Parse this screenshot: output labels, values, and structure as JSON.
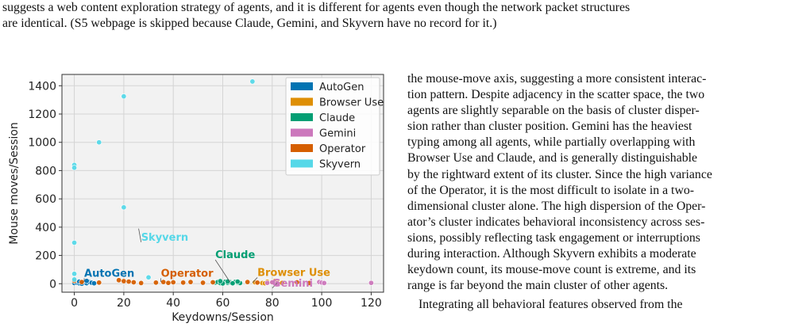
{
  "caption": {
    "lines": [
      "suggests a web content exploration strategy of agents, and it is different for agents even though the network packet structures",
      "are identical. (S5 webpage is skipped because Claude, Gemini, and Skyvern have no record for it.)"
    ]
  },
  "body": {
    "para1_lines": [
      "the mouse-move axis, suggesting a more consistent interac-",
      "tion pattern. Despite adjacency in the scatter space, the two",
      "agents are slightly separable on the basis of cluster disper-",
      "sion rather than cluster position. Gemini has the heaviest",
      "typing among all agents, while partially overlapping with",
      "Browser Use and Claude, and is generally distinguishable",
      "by the rightward extent of its cluster. Since the high variance",
      "of the Operator, it is the most difficult to isolate in a two-",
      "dimensional cluster alone. The high dispersion of the Oper-",
      "ator’s cluster indicates behavioral inconsistency across ses-",
      "sions, possibly reflecting task engagement or interruptions",
      "during interaction. Although Skyvern exhibits a moderate",
      "keydown count, its mouse-move count is extreme, and its",
      "range is far beyond the main cluster of other agents."
    ],
    "para2_line": "Integrating all behavioral features observed from the"
  },
  "chart_data": {
    "type": "scatter",
    "title": "",
    "xlabel": "Keydowns/Session",
    "ylabel": "Mouse moves/Session",
    "xlim": [
      -5,
      125
    ],
    "ylim": [
      -60,
      1480
    ],
    "xticks": [
      0,
      20,
      40,
      60,
      80,
      100,
      120
    ],
    "yticks": [
      0,
      200,
      400,
      600,
      800,
      1000,
      1200,
      1400
    ],
    "grid": true,
    "legend_position": "top-right",
    "series": [
      {
        "name": "AutoGen",
        "color": "#0173b2",
        "points": [
          [
            0,
            5
          ],
          [
            1,
            8
          ],
          [
            2,
            3
          ],
          [
            3,
            10
          ],
          [
            4,
            6
          ],
          [
            5,
            4
          ],
          [
            6,
            12
          ],
          [
            7,
            7
          ],
          [
            8,
            3
          ],
          [
            2,
            15
          ],
          [
            5,
            20
          ],
          [
            3,
            0
          ]
        ]
      },
      {
        "name": "Browser Use",
        "color": "#de8f05",
        "points": [
          [
            73,
            10
          ],
          [
            76,
            5
          ],
          [
            78,
            14
          ],
          [
            80,
            8
          ],
          [
            82,
            12
          ],
          [
            84,
            6
          ],
          [
            77,
            3
          ],
          [
            81,
            18
          ]
        ]
      },
      {
        "name": "Claude",
        "color": "#029e73",
        "points": [
          [
            57,
            8
          ],
          [
            58,
            12
          ],
          [
            59,
            5
          ],
          [
            60,
            10
          ],
          [
            61,
            14
          ],
          [
            62,
            7
          ],
          [
            63,
            11
          ],
          [
            64,
            6
          ],
          [
            65,
            13
          ],
          [
            66,
            9
          ],
          [
            67,
            5
          ],
          [
            60,
            2
          ],
          [
            62,
            16
          ],
          [
            64,
            3
          ],
          [
            59,
            18
          ],
          [
            66,
            15
          ]
        ]
      },
      {
        "name": "Gemini",
        "color": "#cc78bc",
        "points": [
          [
            78,
            6
          ],
          [
            80,
            10
          ],
          [
            82,
            4
          ],
          [
            99,
            12
          ],
          [
            100,
            8
          ],
          [
            101,
            5
          ],
          [
            120,
            6
          ]
        ]
      },
      {
        "name": "Operator",
        "color": "#d55e00",
        "points": [
          [
            0,
            20
          ],
          [
            3,
            12
          ],
          [
            10,
            8
          ],
          [
            18,
            25
          ],
          [
            20,
            18
          ],
          [
            22,
            15
          ],
          [
            24,
            10
          ],
          [
            27,
            5
          ],
          [
            33,
            8
          ],
          [
            36,
            12
          ],
          [
            38,
            6
          ],
          [
            40,
            10
          ],
          [
            44,
            8
          ],
          [
            47,
            12
          ],
          [
            52,
            7
          ],
          [
            56,
            10
          ],
          [
            70,
            12
          ],
          [
            74,
            8
          ],
          [
            90,
            10
          ],
          [
            95,
            5
          ]
        ]
      },
      {
        "name": "Skyvern",
        "color": "#56d8e8",
        "points": [
          [
            0,
            840
          ],
          [
            0,
            820
          ],
          [
            0,
            290
          ],
          [
            0,
            70
          ],
          [
            0,
            30
          ],
          [
            10,
            1000
          ],
          [
            20,
            1325
          ],
          [
            20,
            540
          ],
          [
            30,
            45
          ],
          [
            72,
            1430
          ]
        ]
      }
    ],
    "annotations": [
      {
        "text": "AutoGen",
        "series": "AutoGen",
        "x": 4,
        "y": 14,
        "label_x": 4,
        "label_y": 50
      },
      {
        "text": "Operator",
        "series": "Operator",
        "x": 35,
        "y": 12,
        "label_x": 35,
        "label_y": 50
      },
      {
        "text": "Skyvern",
        "series": "Skyvern",
        "x": 26,
        "y": 390,
        "label_x": 27,
        "label_y": 305
      },
      {
        "text": "Claude",
        "series": "Claude",
        "x": 63,
        "y": 10,
        "label_x": 57,
        "label_y": 180
      },
      {
        "text": "Browser Use",
        "series": "Browser Use",
        "x": 72,
        "y": 8,
        "label_x": 74,
        "label_y": 55
      },
      {
        "text": "Gemini",
        "series": "Gemini",
        "x": 82,
        "y": 6,
        "label_x": 80,
        "label_y": -20
      }
    ]
  }
}
